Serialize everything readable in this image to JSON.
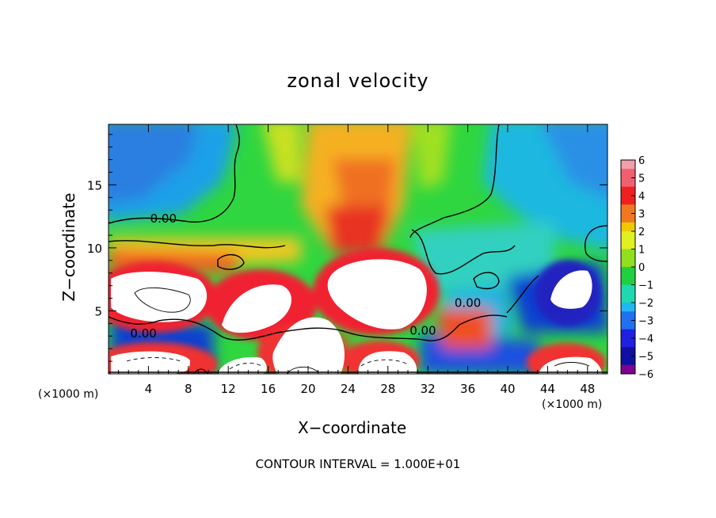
{
  "chart_data": {
    "type": "heatmap",
    "title": "zonal velocity",
    "xlabel": "X−coordinate",
    "ylabel": "Z−coordinate",
    "x_unit_label": "(×1000 m)",
    "footer": "CONTOUR INTERVAL = 1.000E+01",
    "xlim": [
      0,
      50
    ],
    "ylim": [
      0,
      19.8
    ],
    "xticks": [
      4,
      8,
      12,
      16,
      20,
      24,
      28,
      32,
      36,
      40,
      44,
      48
    ],
    "yticks": [
      5,
      10,
      15
    ],
    "colorbar": {
      "ticks": [
        6,
        5,
        4,
        3,
        2,
        1,
        0,
        -1,
        -2,
        -3,
        -4,
        -5,
        -6
      ],
      "tick_labels": [
        "6",
        "5",
        "4",
        "3",
        "2",
        "1",
        "0",
        "−1",
        "−2",
        "−3",
        "−4",
        "−5",
        "−6"
      ],
      "range": [
        -6,
        6
      ]
    },
    "contour_labels": [
      {
        "text": "0.00",
        "x": 5.5,
        "y": 12.0
      },
      {
        "text": "0.00",
        "x": 3.5,
        "y": 2.9
      },
      {
        "text": "0.00",
        "x": 31.5,
        "y": 3.1
      },
      {
        "text": "0.00",
        "x": 36.0,
        "y": 5.3
      }
    ],
    "colors": {
      "frame": "#000000",
      "background": "#ffffff",
      "saturated_positive": "#ffffff"
    }
  }
}
